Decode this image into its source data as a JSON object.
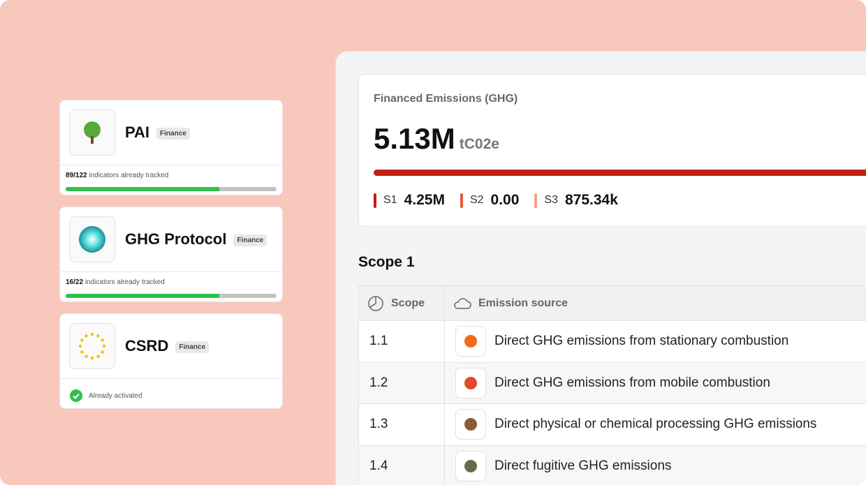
{
  "frameworks": [
    {
      "name": "PAI",
      "tag": "Finance",
      "count": "89/122",
      "status": "indicators already tracked"
    },
    {
      "name": "GHG Protocol",
      "tag": "Finance",
      "count": "16/22",
      "status": "indicators already tracked"
    },
    {
      "name": "CSRD",
      "tag": "Finance",
      "status": "Already activated"
    }
  ],
  "summary": {
    "title": "Financed Emissions (GHG)",
    "total": "5.13M",
    "unit": "tC02e",
    "scopes": [
      {
        "label": "S1",
        "value": "4.25M"
      },
      {
        "label": "S2",
        "value": "0.00"
      },
      {
        "label": "S3",
        "value": "875.34k"
      }
    ]
  },
  "section": {
    "title": "Scope 1"
  },
  "table": {
    "headers": [
      "Scope",
      "Emission source"
    ],
    "rows": [
      [
        "1.1",
        "Direct GHG emissions from stationary combustion"
      ],
      [
        "1.2",
        "Direct GHG emissions from mobile combustion"
      ],
      [
        "1.3",
        "Direct physical or chemical processing GHG emissions"
      ],
      [
        "1.4",
        "Direct fugitive GHG emissions"
      ]
    ]
  }
}
